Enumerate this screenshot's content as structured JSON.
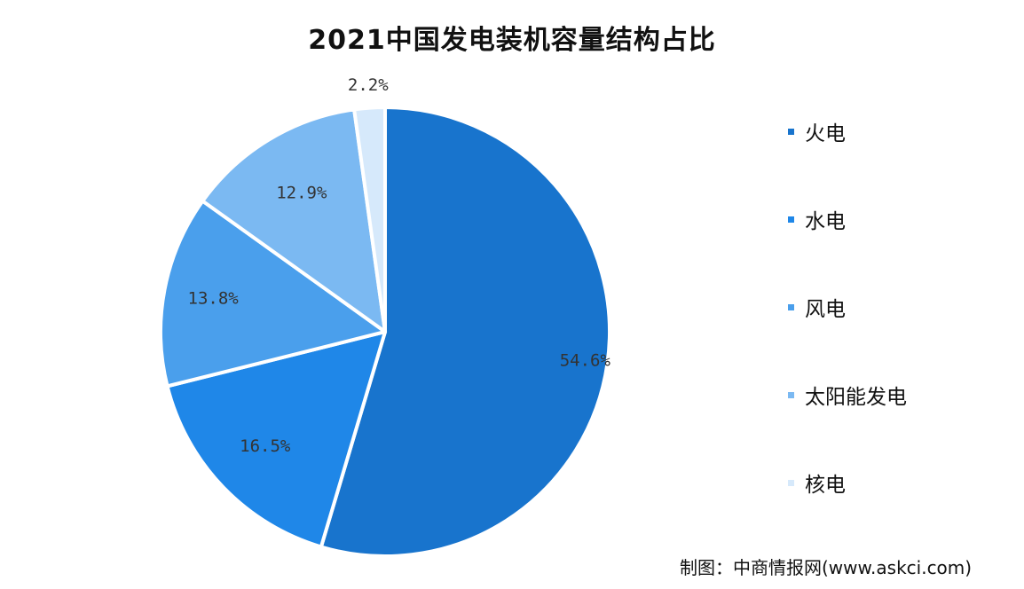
{
  "chart_data": {
    "type": "pie",
    "title": "2021中国发电装机容量结构占比",
    "slices": [
      {
        "name": "火电",
        "value": 54.6,
        "label": "54.6%",
        "color": "#1874cd"
      },
      {
        "name": "水电",
        "value": 16.5,
        "label": "16.5%",
        "color": "#1f87e8"
      },
      {
        "name": "风电",
        "value": 13.8,
        "label": "13.8%",
        "color": "#4a9fec"
      },
      {
        "name": "太阳能发电",
        "value": 12.9,
        "label": "12.9%",
        "color": "#7bb9f2"
      },
      {
        "name": "核电",
        "value": 2.2,
        "label": "2.2%",
        "color": "#d6e9fb"
      }
    ],
    "legend_position": "right",
    "start": "12 o'clock",
    "direction": "clockwise"
  },
  "credit": "制图：中商情报网(www.askci.com)"
}
